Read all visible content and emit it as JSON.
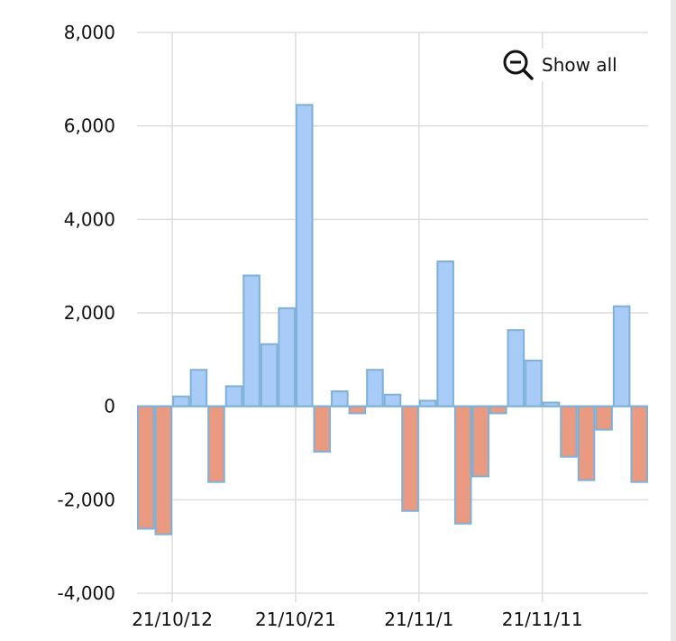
{
  "chart_data": {
    "type": "bar",
    "title": "",
    "xlabel": "",
    "ylabel": "",
    "ylim": [
      -4000,
      8000
    ],
    "yticks": [
      -4000,
      -2000,
      0,
      2000,
      4000,
      6000,
      8000
    ],
    "ytick_labels": [
      "-4,000",
      "-2,000",
      "0",
      "2,000",
      "4,000",
      "6,000",
      "8,000"
    ],
    "xtick_labels": [
      {
        "label": "21/10/12",
        "after_bar": 2
      },
      {
        "label": "21/10/21",
        "after_bar": 9
      },
      {
        "label": "21/11/1",
        "after_bar": 16
      },
      {
        "label": "21/11/11",
        "after_bar": 23
      }
    ],
    "grid": true,
    "values": [
      -2620,
      -2740,
      210,
      780,
      -1620,
      430,
      2800,
      1330,
      2100,
      6450,
      -970,
      320,
      -150,
      780,
      250,
      -2240,
      120,
      3100,
      -2510,
      -1500,
      -150,
      1630,
      980,
      80,
      -1080,
      -1580,
      -500,
      2140,
      -1620
    ],
    "colors": {
      "positive": "#a8cbf7",
      "negative": "#e99a80",
      "border": "#7fb0d6",
      "grid": "#dddddd"
    }
  },
  "controls": {
    "show_all_label": "Show all",
    "show_all_icon": "zoom-out-icon"
  }
}
